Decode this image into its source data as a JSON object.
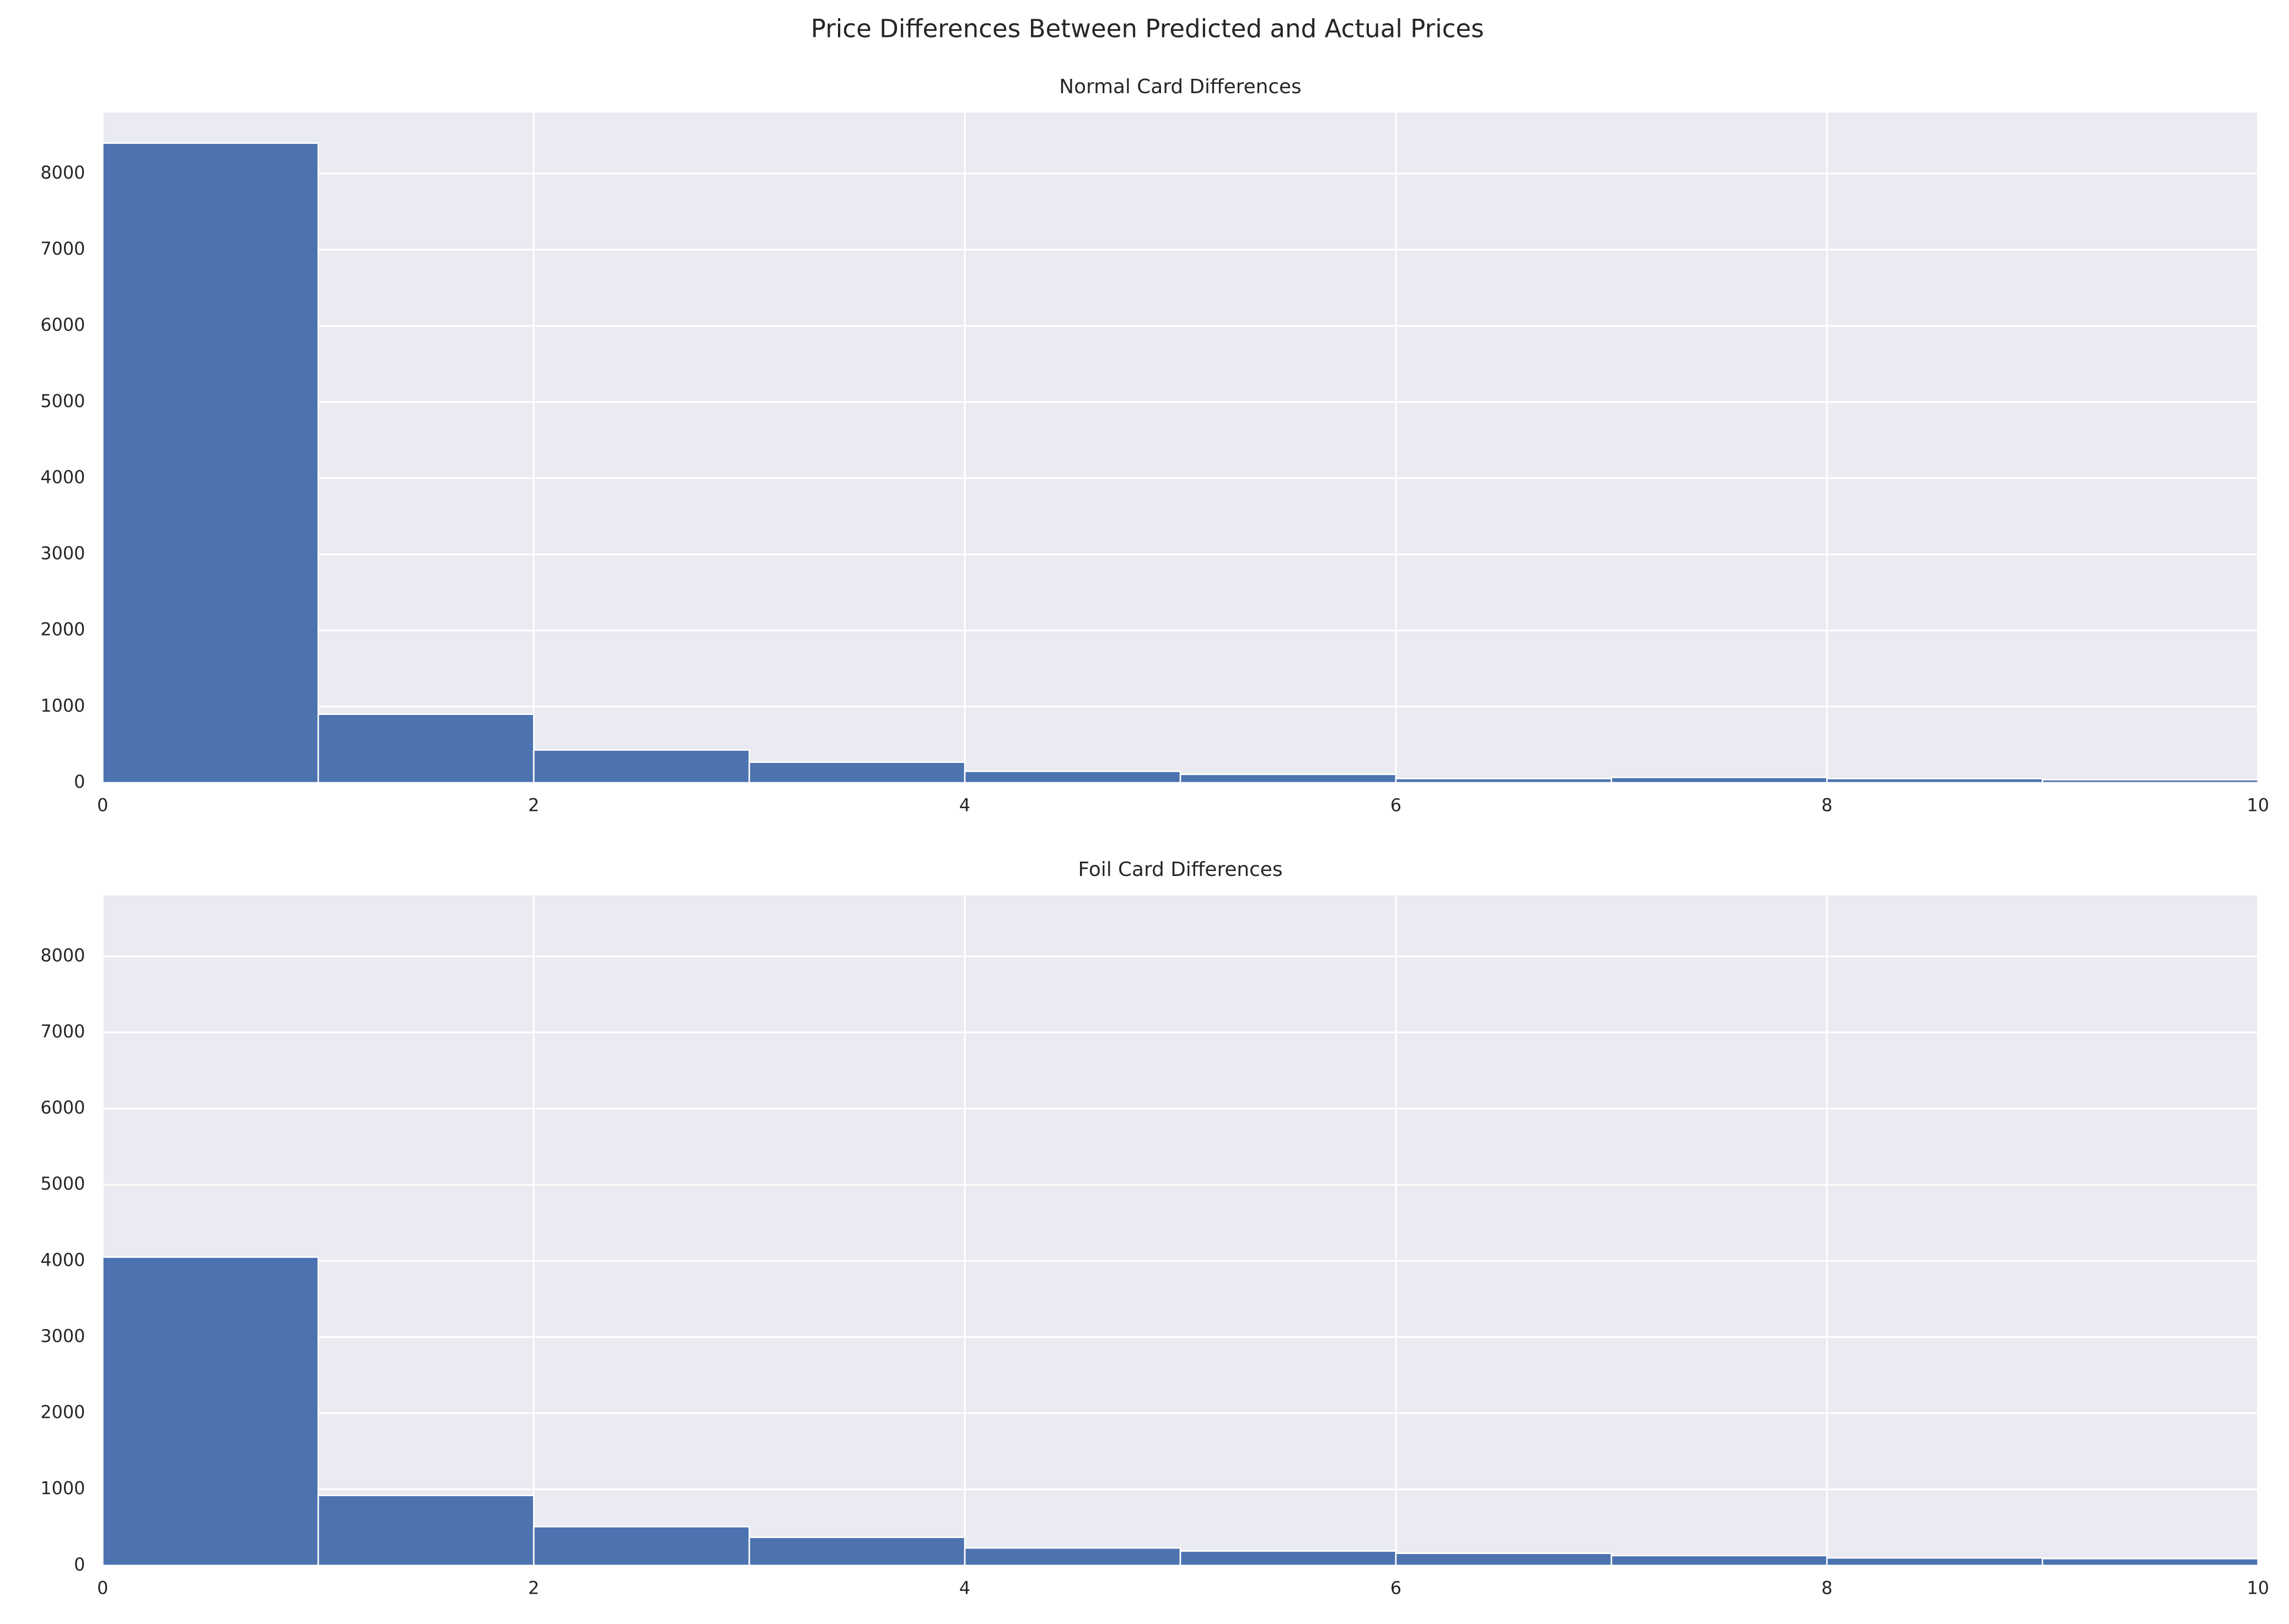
{
  "title": "Price Differences Between Predicted and Actual Prices",
  "chart_data": [
    {
      "type": "histogram",
      "title": "Normal Card Differences",
      "color": "#4c72b0",
      "grid": true,
      "bins": [
        0,
        1,
        2,
        3,
        4,
        5,
        6,
        7,
        8,
        9,
        10
      ],
      "values": [
        8400,
        900,
        430,
        270,
        150,
        110,
        55,
        70,
        55,
        40
      ],
      "xlim": [
        0,
        10
      ],
      "xticks": [
        0,
        2,
        4,
        6,
        8,
        10
      ],
      "ylim": [
        0,
        8800
      ],
      "yticks": [
        0,
        1000,
        2000,
        3000,
        4000,
        5000,
        6000,
        7000,
        8000
      ]
    },
    {
      "type": "histogram",
      "title": "Foil Card Differences",
      "color": "#4c72b0",
      "grid": true,
      "bins": [
        0,
        1,
        2,
        3,
        4,
        5,
        6,
        7,
        8,
        9,
        10
      ],
      "values": [
        4050,
        920,
        510,
        370,
        230,
        190,
        160,
        130,
        100,
        90
      ],
      "xlim": [
        0,
        10
      ],
      "xticks": [
        0,
        2,
        4,
        6,
        8,
        10
      ],
      "ylim": [
        0,
        8800
      ],
      "yticks": [
        0,
        1000,
        2000,
        3000,
        4000,
        5000,
        6000,
        7000,
        8000
      ]
    }
  ]
}
